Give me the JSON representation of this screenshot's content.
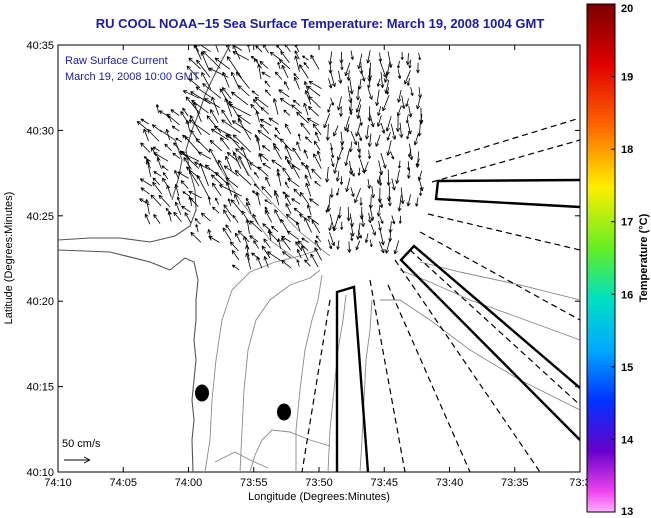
{
  "title": "RU COOL  NOAA−15  Sea Surface Temperature:  March 19, 2008 1004 GMT",
  "overlay": {
    "line1": "Raw Surface Current",
    "line2": "March 19, 2008 10:00 GMT"
  },
  "scale_label": "50 cm/s",
  "axes": {
    "xlabel": "Longitude (Degrees:Minutes)",
    "ylabel": "Latitude (Degrees:Minutes)",
    "xticks": [
      "74:10",
      "74:05",
      "74:00",
      "73:55",
      "73:50",
      "73:45",
      "73:40",
      "73:35",
      "73:3"
    ],
    "yticks": [
      "40:35",
      "40:30",
      "40:25",
      "40:20",
      "40:15",
      "40:10"
    ]
  },
  "colorbar": {
    "label": "Temperature (°C)",
    "ticks": [
      "20",
      "19",
      "18",
      "17",
      "16",
      "15",
      "14",
      "13"
    ],
    "min": 13,
    "max": 20
  },
  "colors": {
    "title": "#1a1aa8",
    "contour": "#8a8a8a",
    "land": "#555555",
    "vectors": "#000000"
  }
}
